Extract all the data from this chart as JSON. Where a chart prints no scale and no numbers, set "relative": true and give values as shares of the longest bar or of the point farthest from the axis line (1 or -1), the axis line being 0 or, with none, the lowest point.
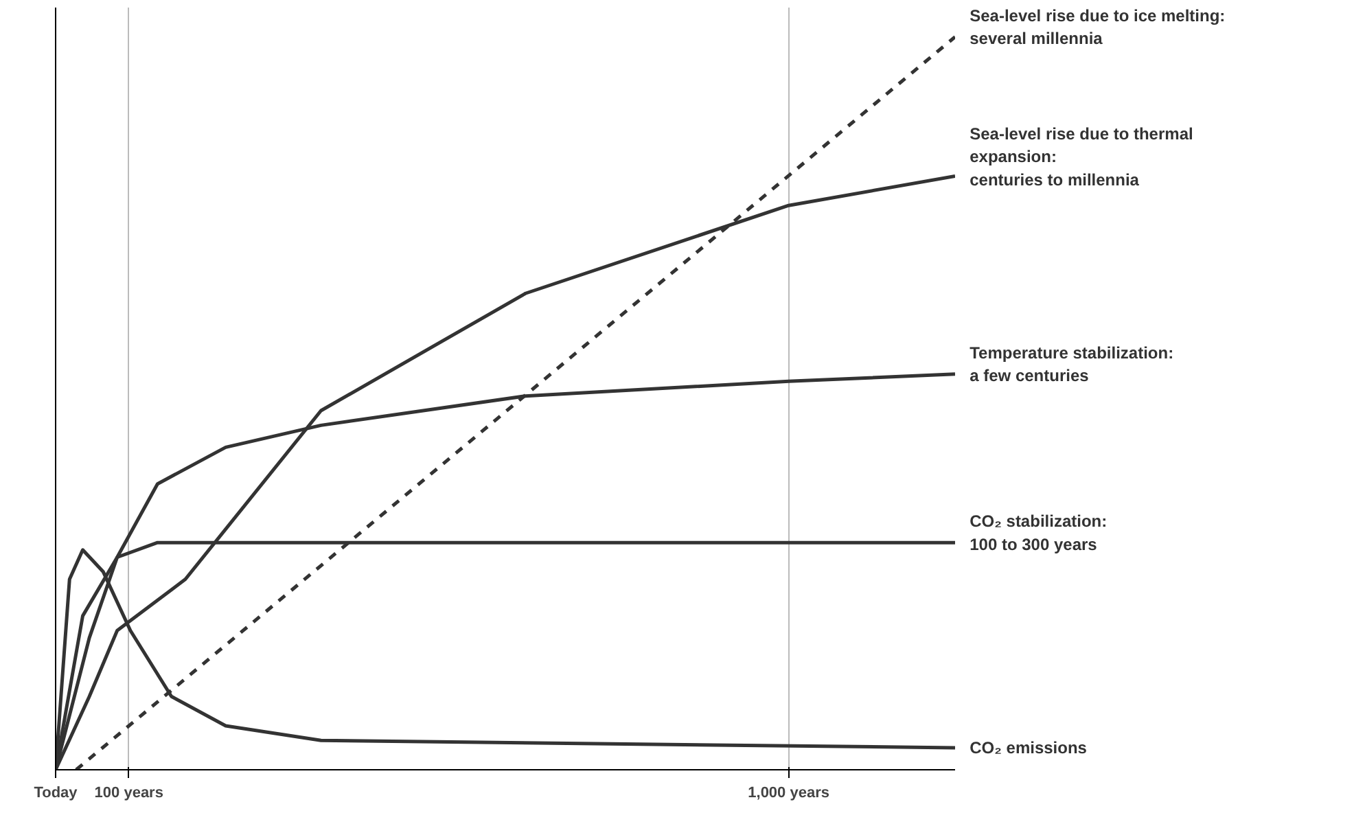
{
  "chart_data": {
    "type": "line",
    "relative": true,
    "xlim": [
      0,
      1227
    ],
    "xticks": [
      {
        "value": 0,
        "label": "Today"
      },
      {
        "value": 100,
        "label": "100 years"
      },
      {
        "value": 1000,
        "label": "1,000 years"
      }
    ],
    "grid": "x",
    "marker": "none",
    "tick_labels": "x",
    "series": [
      {
        "name": "Sea-level rise due to ice melting:\nseveral millennia",
        "color": "#333333",
        "line_style": "dashed",
        "x": [
          28,
          1227
        ],
        "values": [
          0,
          1.0
        ]
      },
      {
        "name": "Sea-level rise due to thermal\nexpansion:\ncenturies to millennia",
        "color": "#333333",
        "x": [
          0,
          46,
          84,
          177,
          362,
          641,
          1000,
          1227
        ],
        "values": [
          0,
          0.1,
          0.19,
          0.26,
          0.49,
          0.65,
          0.77,
          0.81
        ]
      },
      {
        "name": "Temperature stabilization:\na few centuries",
        "color": "#333333",
        "x": [
          0,
          46,
          84,
          139,
          232,
          362,
          641,
          1000,
          1227
        ],
        "values": [
          0,
          0.18,
          0.29,
          0.39,
          0.44,
          0.47,
          0.51,
          0.53,
          0.54
        ]
      },
      {
        "name": "CO₂ stabilization:\n100 to 300 years",
        "color": "#333333",
        "x": [
          0,
          37,
          84,
          139,
          232,
          1227
        ],
        "values": [
          0,
          0.21,
          0.29,
          0.31,
          0.31,
          0.31
        ]
      },
      {
        "name": "CO₂ emissions",
        "color": "#333333",
        "x": [
          0,
          19,
          37,
          65,
          102,
          158,
          232,
          362,
          1227
        ],
        "values": [
          0,
          0.26,
          0.3,
          0.27,
          0.19,
          0.1,
          0.06,
          0.04,
          0.03
        ]
      }
    ]
  }
}
